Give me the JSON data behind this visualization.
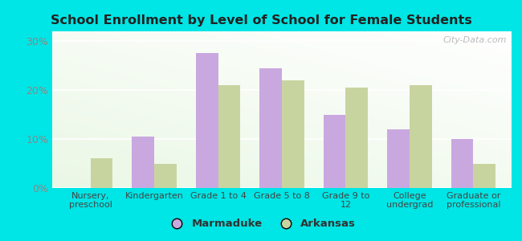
{
  "title": "School Enrollment by Level of School for Female Students",
  "categories": [
    "Nursery,\npreschool",
    "Kindergarten",
    "Grade 1 to 4",
    "Grade 5 to 8",
    "Grade 9 to\n12",
    "College\nundergrad",
    "Graduate or\nprofessional"
  ],
  "marmaduke": [
    0,
    10.5,
    27.5,
    24.5,
    15.0,
    12.0,
    10.0
  ],
  "arkansas": [
    6.0,
    5.0,
    21.0,
    22.0,
    20.5,
    21.0,
    5.0
  ],
  "marmaduke_color": "#c9a8e0",
  "arkansas_color": "#c8d4a0",
  "background_outer": "#00e5e5",
  "yticks": [
    0,
    10,
    20,
    30
  ],
  "ytick_labels": [
    "0%",
    "10%",
    "20%",
    "30%"
  ],
  "ylim": [
    0,
    32
  ],
  "legend_labels": [
    "Marmaduke",
    "Arkansas"
  ],
  "watermark": "City-Data.com",
  "bar_width": 0.35
}
